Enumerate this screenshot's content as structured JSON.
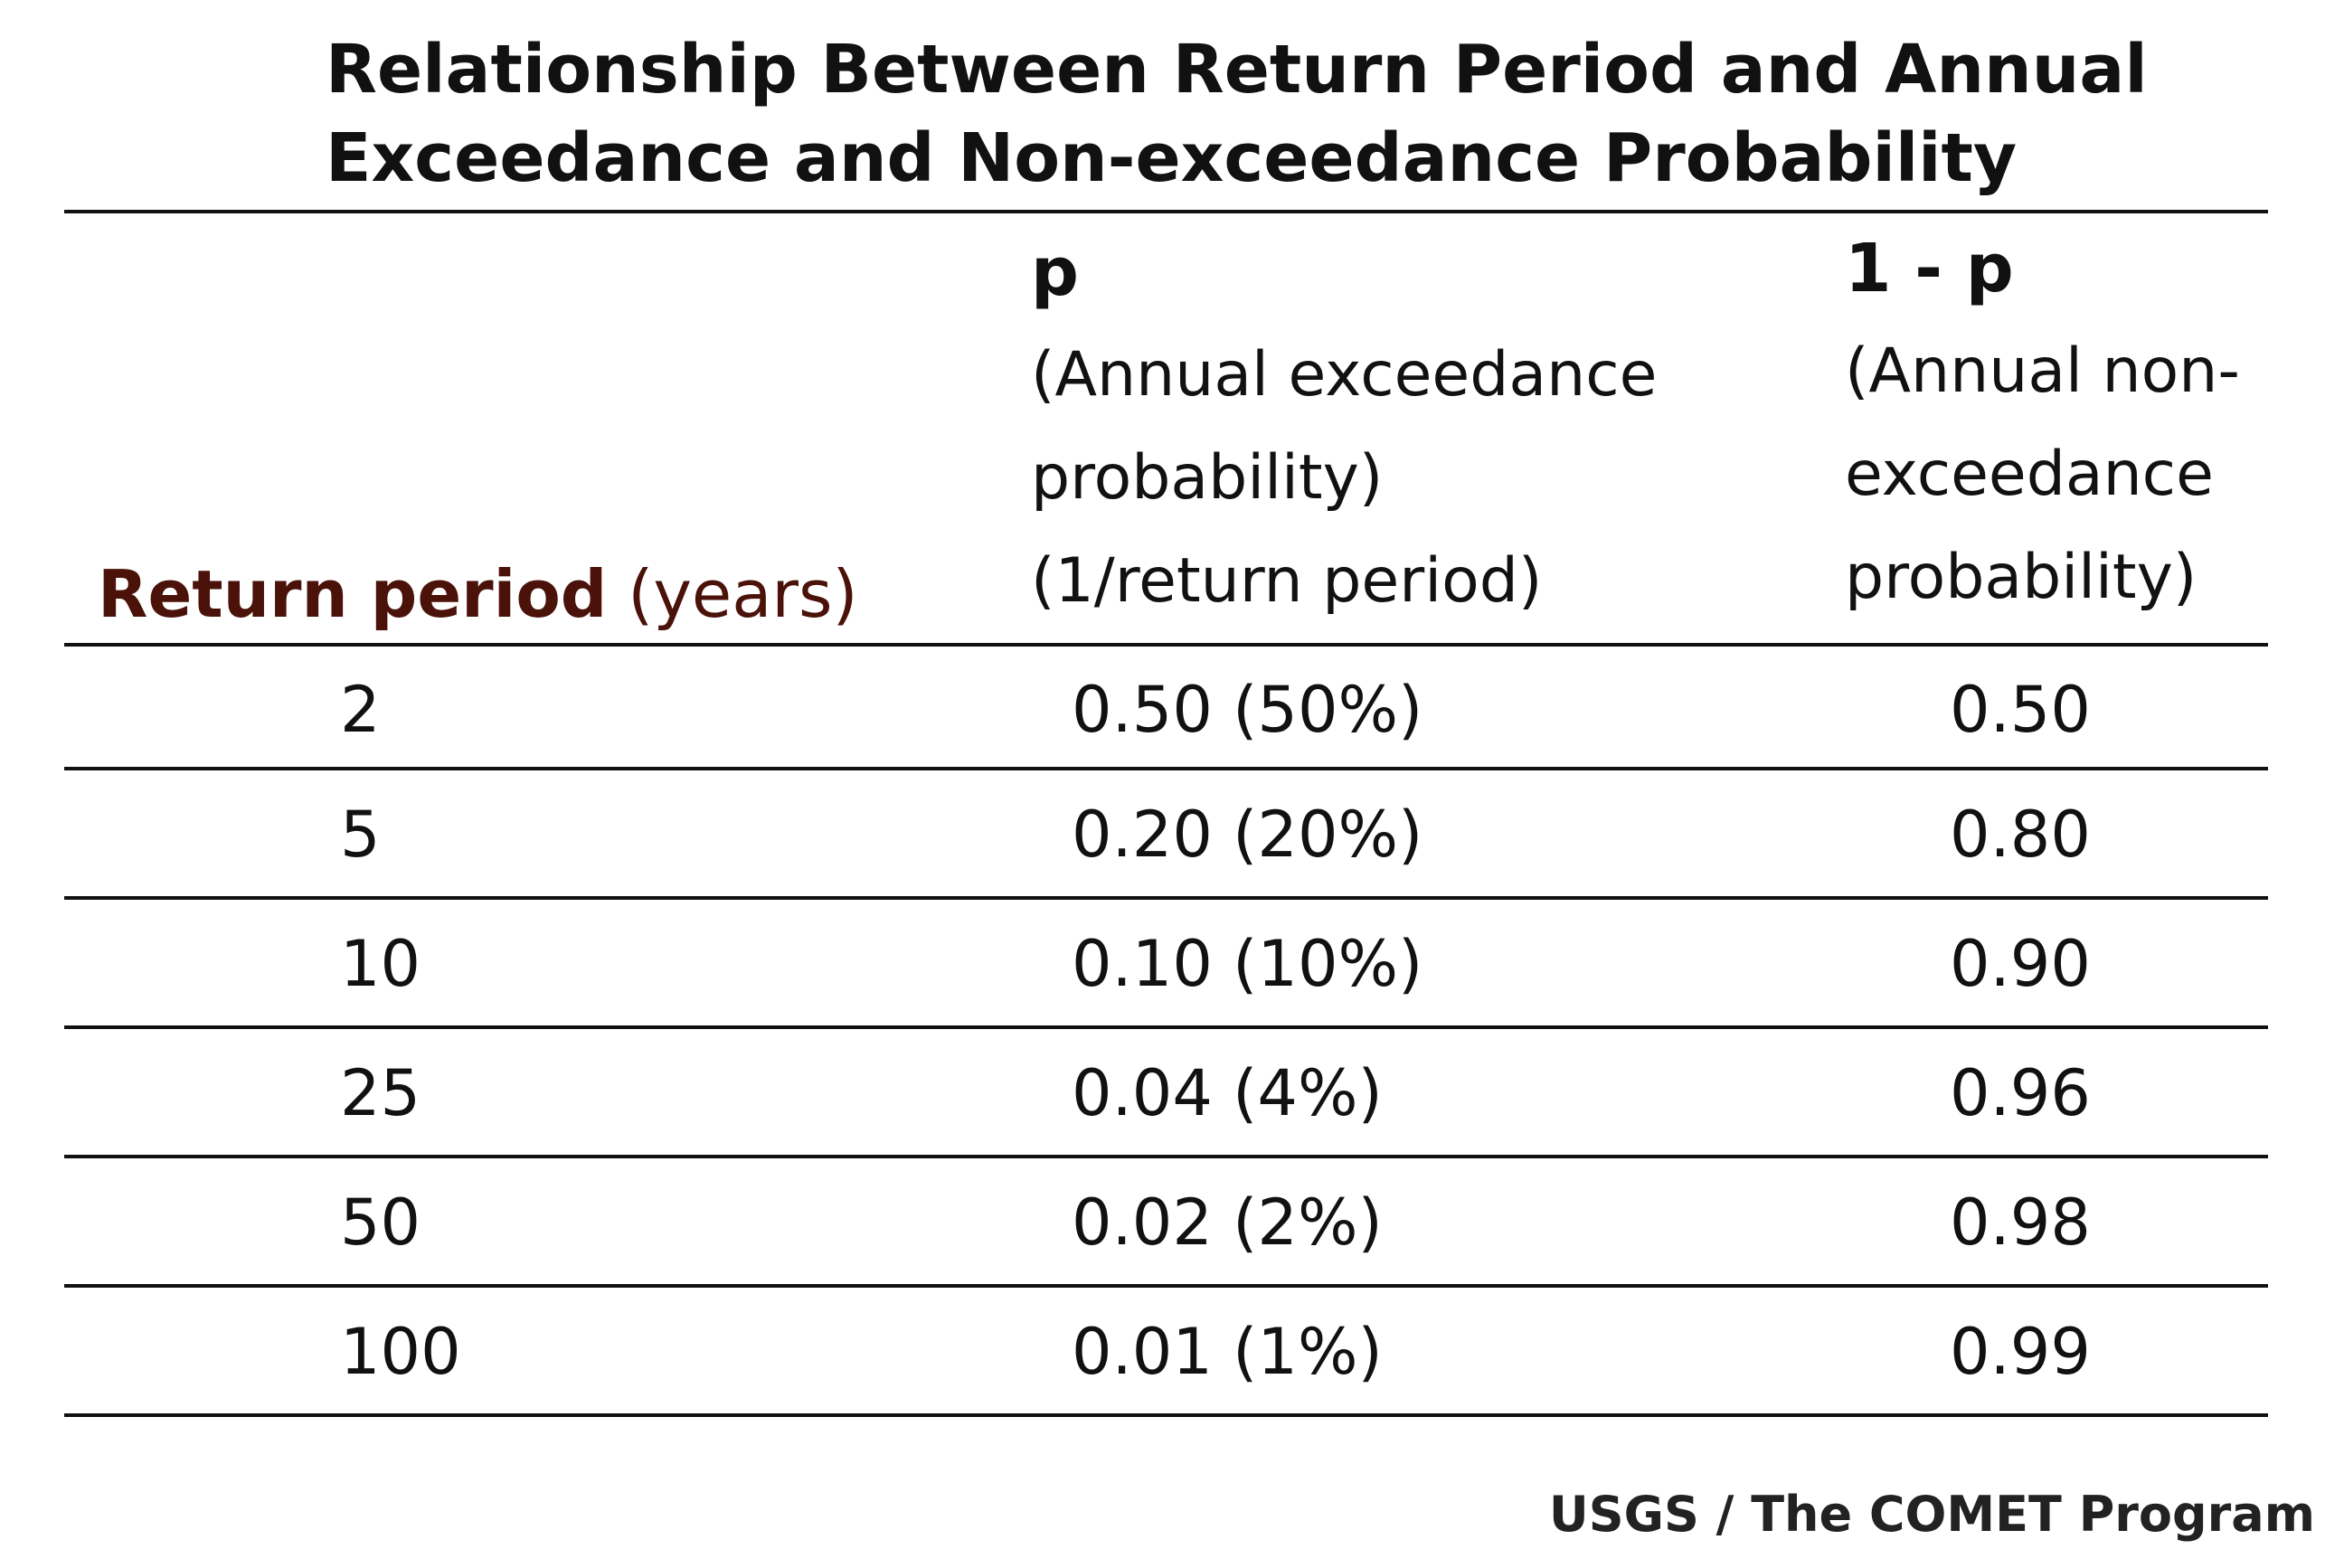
{
  "title": {
    "line1": "Relationship Between Return Period and Annual",
    "line2": "Exceedance and Non-exceedance Probability"
  },
  "headers": {
    "return_period": {
      "bold": "Return period",
      "unit": "(years)"
    },
    "p": {
      "symbol": "p",
      "line1": "(Annual exceedance",
      "line2": "probability)",
      "line3": "(1/return period)"
    },
    "one_minus_p": {
      "symbol": "1 - p",
      "line1": "(Annual non-",
      "line2": "exceedance",
      "line3": "probability)"
    }
  },
  "rows": [
    {
      "return_period": "2",
      "p": "0.50 (50%)",
      "one_minus_p": "0.50"
    },
    {
      "return_period": "5",
      "p": "0.20 (20%)",
      "one_minus_p": "0.80"
    },
    {
      "return_period": "10",
      "p": "0.10 (10%)",
      "one_minus_p": "0.90"
    },
    {
      "return_period": "25",
      "p": "0.04 (4%)",
      "one_minus_p": "0.96"
    },
    {
      "return_period": "50",
      "p": "0.02 (2%)",
      "one_minus_p": "0.98"
    },
    {
      "return_period": "100",
      "p": "0.01 (1%)",
      "one_minus_p": "0.99"
    }
  ],
  "credit": "USGS / The COMET Program",
  "colors": {
    "label_accent": "#4a1208",
    "rule": "#111111"
  }
}
